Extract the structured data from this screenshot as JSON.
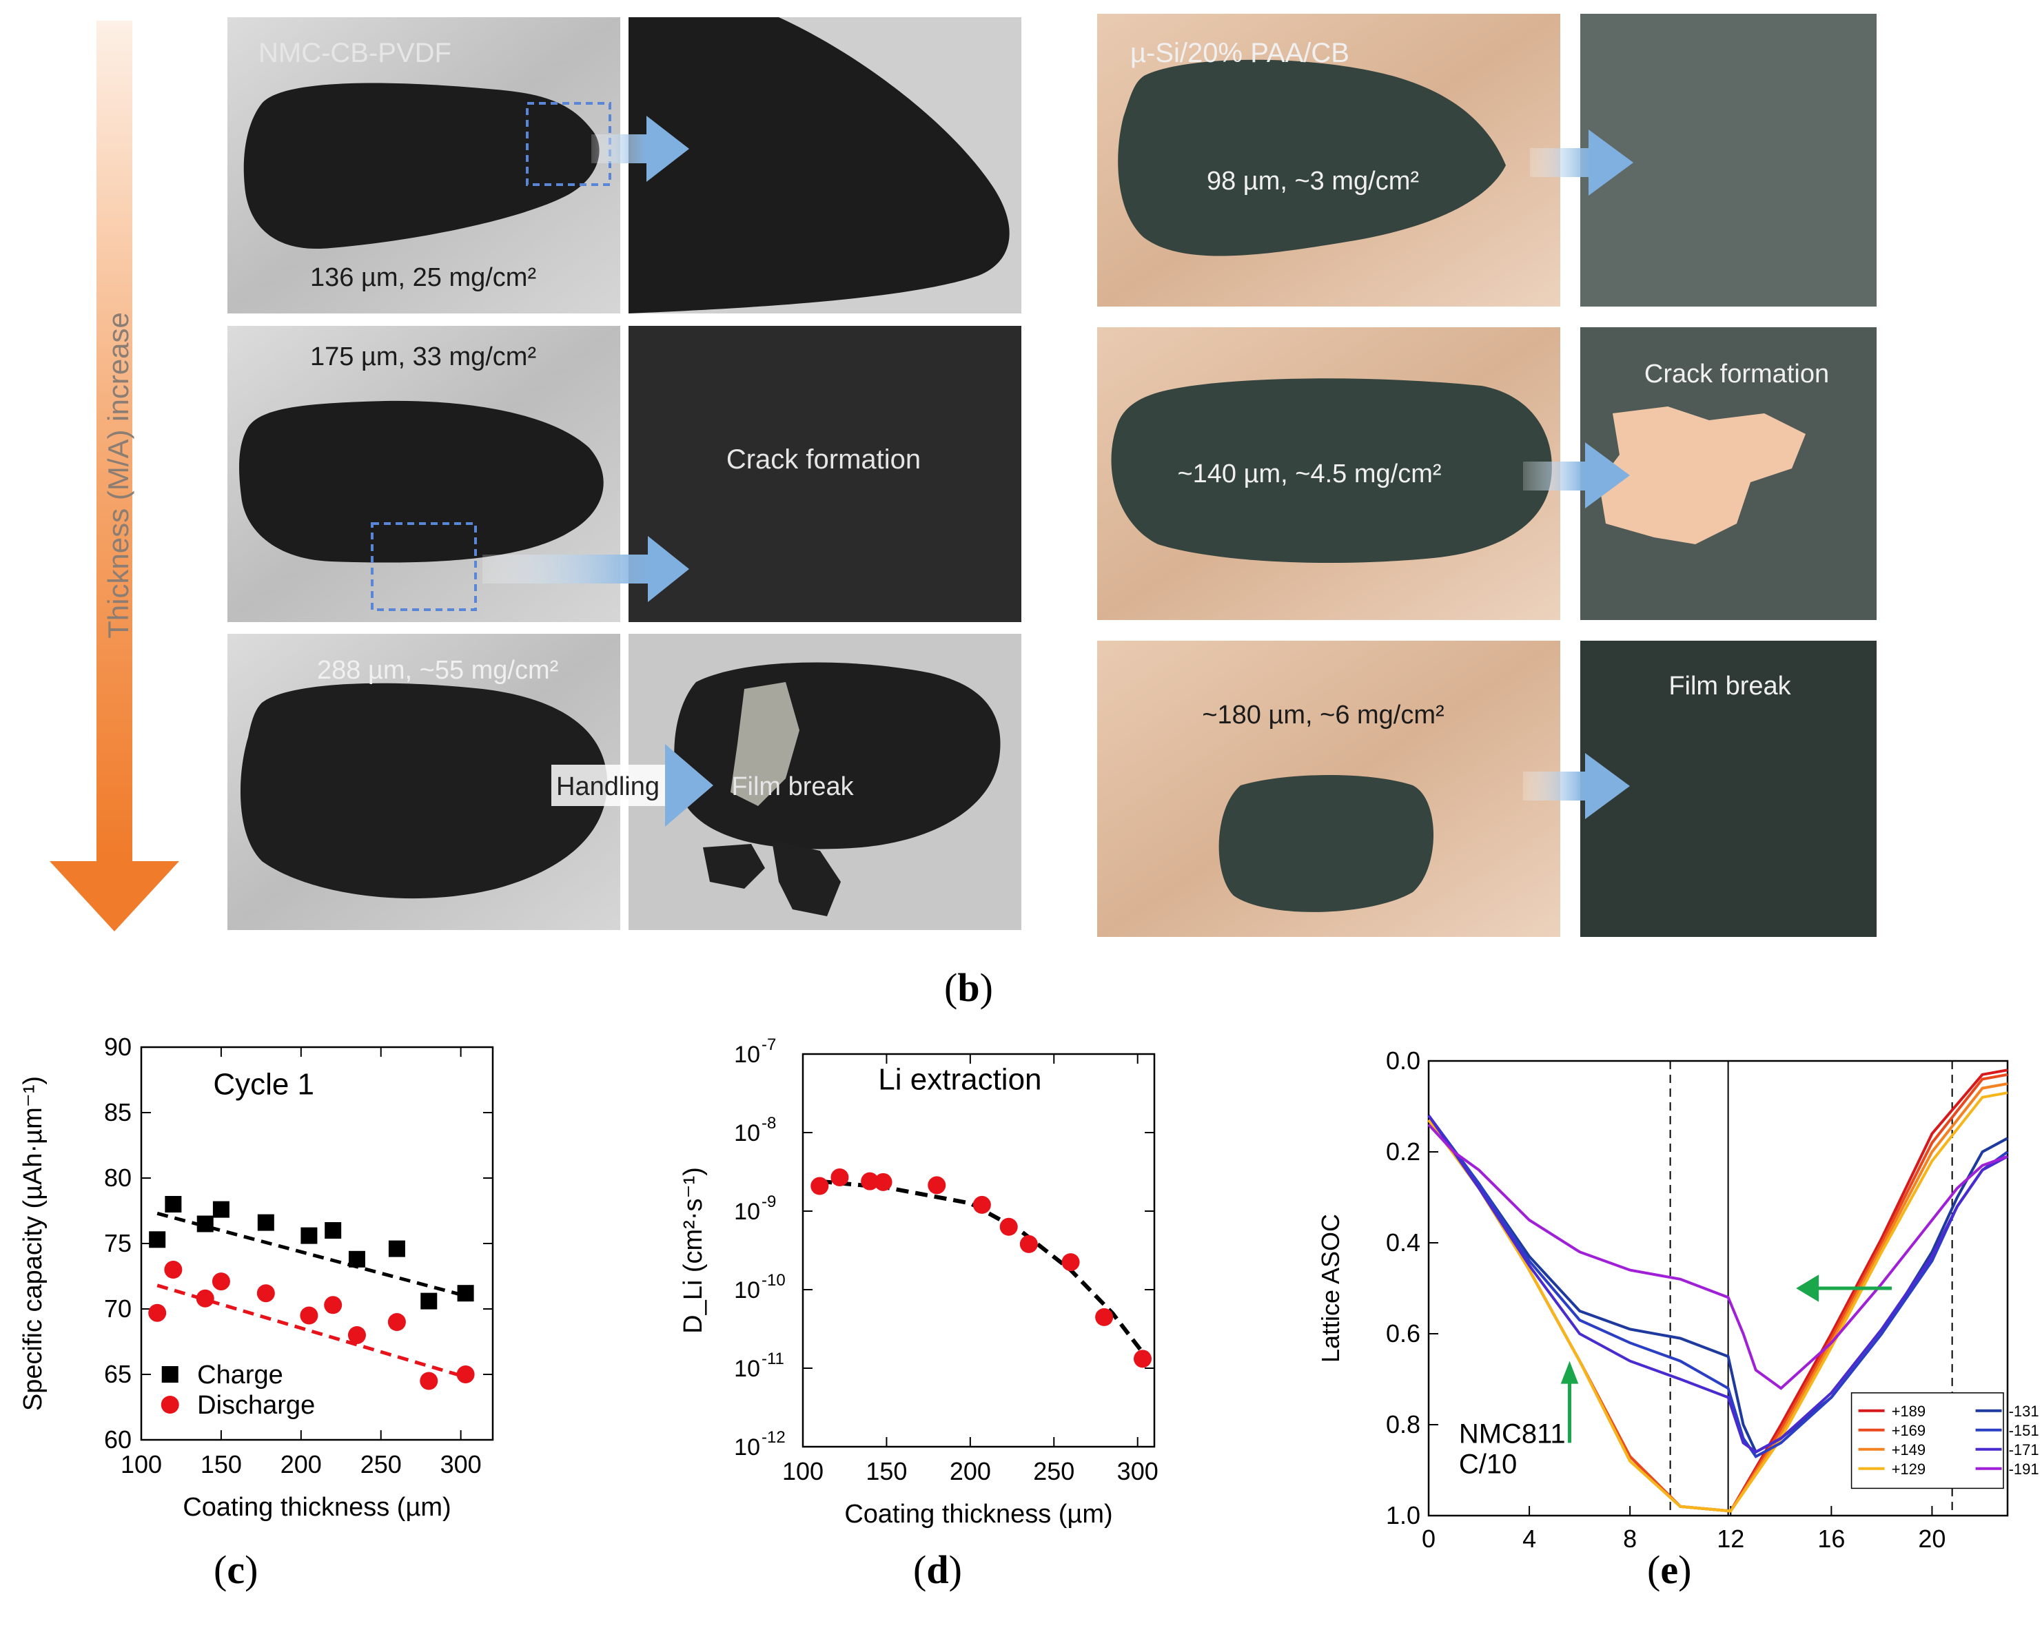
{
  "panel_b": {
    "axis_label": "Thickness (M/A) increase",
    "left_title": "NMC-CB-PVDF",
    "right_title": "µ-Si/20% PAA/CB",
    "left_rows": [
      {
        "label": "136 µm, 25 mg/cm²",
        "zoom_text": ""
      },
      {
        "label": "175 µm, 33 mg/cm²",
        "zoom_text": "Crack formation"
      },
      {
        "label": "288 µm, ~55 mg/cm²",
        "zoom_text": "Film break",
        "handling": "Handling"
      }
    ],
    "right_rows": [
      {
        "label": "98 µm, ~3 mg/cm²",
        "zoom_text": ""
      },
      {
        "label": "~140 µm, ~4.5 mg/cm²",
        "zoom_text": "Crack formation"
      },
      {
        "label": "~180 µm, ~6 mg/cm²",
        "zoom_text": "Film break"
      }
    ],
    "caption": "b"
  },
  "colors": {
    "nmc_film": "#1c1c1c",
    "si_film": "#35443f",
    "al_foil": "#cfcfcf",
    "cu_foil": "#e2bfa3",
    "arrow": "#f28a3a",
    "zoom_arrow": "#8fb8e0"
  },
  "chart_data": [
    {
      "panel": "c",
      "type": "scatter",
      "title": "Cycle 1",
      "xlabel": "Coating thickness (µm)",
      "ylabel": "Specific capacity (µAh·µm⁻¹)",
      "xlim": [
        100,
        320
      ],
      "ylim": [
        60,
        90
      ],
      "xticks": [
        100,
        150,
        200,
        250,
        300
      ],
      "yticks": [
        60,
        65,
        70,
        75,
        80,
        85,
        90
      ],
      "series": [
        {
          "name": "Charge",
          "marker": "square",
          "color": "#000000",
          "x": [
            110,
            120,
            140,
            150,
            178,
            205,
            220,
            235,
            260,
            280,
            303
          ],
          "y": [
            75.3,
            78.0,
            76.5,
            77.6,
            76.6,
            75.6,
            76.0,
            73.8,
            74.6,
            70.6,
            71.2
          ],
          "trend": {
            "x": [
              110,
              303
            ],
            "y": [
              77.3,
              71.0
            ]
          }
        },
        {
          "name": "Discharge",
          "marker": "circle",
          "color": "#e8121a",
          "x": [
            110,
            120,
            140,
            150,
            178,
            205,
            220,
            235,
            260,
            280,
            303
          ],
          "y": [
            69.7,
            73.0,
            70.8,
            72.1,
            71.2,
            69.5,
            70.3,
            68.0,
            69.0,
            64.5,
            65.0
          ],
          "trend": {
            "x": [
              110,
              303
            ],
            "y": [
              71.8,
              64.8
            ]
          }
        }
      ]
    },
    {
      "panel": "d",
      "type": "scatter",
      "title": "Li extraction",
      "xlabel": "Coating thickness (µm)",
      "ylabel": "D_Li (cm²·s⁻¹)",
      "yscale": "log",
      "xlim": [
        100,
        310
      ],
      "ylim_exp": [
        -12,
        -7
      ],
      "xticks": [
        100,
        150,
        200,
        250,
        300
      ],
      "yticks_exp": [
        -12,
        -11,
        -10,
        -9,
        -8,
        -7
      ],
      "series": [
        {
          "name": "D_Li",
          "marker": "circle",
          "color": "#e8121a",
          "x": [
            110,
            122,
            140,
            148,
            180,
            207,
            223,
            235,
            260,
            280,
            303
          ],
          "y_exp": [
            -8.68,
            -8.57,
            -8.62,
            -8.63,
            -8.67,
            -8.92,
            -9.2,
            -9.42,
            -9.65,
            -10.35,
            -10.88
          ]
        },
        {
          "name": "fit",
          "style": "dashed",
          "color": "#000000",
          "x": [
            110,
            150,
            200,
            230,
            260,
            285,
            303
          ],
          "y_exp": [
            -8.62,
            -8.7,
            -8.9,
            -9.25,
            -9.75,
            -10.3,
            -10.8
          ]
        }
      ]
    },
    {
      "panel": "e",
      "type": "line",
      "annotation": "NMC811\nC/10",
      "ylabel": "Lattice ASOC",
      "xlim": [
        0,
        23
      ],
      "ylim": [
        1.0,
        0.0
      ],
      "xticks": [
        0,
        4,
        8,
        12,
        16,
        20
      ],
      "yticks": [
        0.0,
        0.2,
        0.4,
        0.6,
        0.8,
        1.0
      ],
      "vlines": [
        {
          "x": 9.6,
          "style": "dashed"
        },
        {
          "x": 11.9,
          "style": "solid"
        },
        {
          "x": 20.8,
          "style": "dashed"
        }
      ],
      "legend": [
        "+189",
        "+169",
        "+149",
        "+129",
        "-131",
        "-151",
        "-171",
        "-191"
      ],
      "series": [
        {
          "name": "+189",
          "color": "#d7191c",
          "x": [
            0,
            2,
            4,
            6,
            8,
            10,
            12,
            14,
            16,
            18,
            20,
            22,
            23
          ],
          "y": [
            0.13,
            0.27,
            0.46,
            0.66,
            0.87,
            0.98,
            0.99,
            0.8,
            0.6,
            0.39,
            0.16,
            0.03,
            0.02
          ]
        },
        {
          "name": "+169",
          "color": "#e8491d",
          "x": [
            0,
            2,
            4,
            6,
            8,
            10,
            12,
            14,
            16,
            18,
            20,
            22,
            23
          ],
          "y": [
            0.13,
            0.27,
            0.46,
            0.66,
            0.87,
            0.98,
            0.99,
            0.81,
            0.61,
            0.4,
            0.18,
            0.04,
            0.03
          ]
        },
        {
          "name": "+149",
          "color": "#f58220",
          "x": [
            0,
            2,
            4,
            6,
            8,
            10,
            12,
            14,
            16,
            18,
            20,
            22,
            23
          ],
          "y": [
            0.13,
            0.28,
            0.46,
            0.66,
            0.88,
            0.98,
            0.99,
            0.82,
            0.62,
            0.41,
            0.2,
            0.06,
            0.05
          ]
        },
        {
          "name": "+129",
          "color": "#f7b51c",
          "x": [
            0,
            2,
            4,
            6,
            8,
            10,
            12,
            14,
            16,
            18,
            20,
            22,
            23
          ],
          "y": [
            0.13,
            0.28,
            0.46,
            0.66,
            0.88,
            0.98,
            0.99,
            0.83,
            0.63,
            0.42,
            0.22,
            0.08,
            0.07
          ]
        },
        {
          "name": "-131",
          "color": "#1f3a9e",
          "x": [
            0,
            2,
            4,
            6,
            8,
            10,
            11.9,
            12.5,
            13,
            14,
            16,
            18,
            20,
            21,
            22,
            23
          ],
          "y": [
            0.12,
            0.27,
            0.43,
            0.55,
            0.59,
            0.61,
            0.65,
            0.8,
            0.86,
            0.83,
            0.74,
            0.6,
            0.42,
            0.3,
            0.2,
            0.17
          ]
        },
        {
          "name": "-151",
          "color": "#2a3fc4",
          "x": [
            0,
            2,
            4,
            6,
            8,
            10,
            11.9,
            12.5,
            13,
            14,
            16,
            18,
            20,
            21,
            22,
            23
          ],
          "y": [
            0.12,
            0.27,
            0.44,
            0.57,
            0.62,
            0.66,
            0.72,
            0.83,
            0.87,
            0.84,
            0.74,
            0.6,
            0.44,
            0.32,
            0.24,
            0.2
          ]
        },
        {
          "name": "-171",
          "color": "#4a2bd0",
          "x": [
            0,
            2,
            4,
            6,
            8,
            10,
            11.9,
            12.5,
            13,
            14,
            16,
            18,
            20,
            21,
            22,
            23
          ],
          "y": [
            0.12,
            0.28,
            0.45,
            0.6,
            0.66,
            0.7,
            0.74,
            0.84,
            0.86,
            0.83,
            0.73,
            0.59,
            0.43,
            0.32,
            0.24,
            0.21
          ]
        },
        {
          "name": "-191",
          "color": "#a020d8",
          "x": [
            0,
            1,
            2,
            4,
            6,
            8,
            10,
            11.9,
            12.5,
            13,
            14,
            16,
            18,
            20,
            21,
            22,
            23
          ],
          "y": [
            0.14,
            0.2,
            0.24,
            0.35,
            0.42,
            0.46,
            0.48,
            0.52,
            0.6,
            0.68,
            0.72,
            0.62,
            0.49,
            0.35,
            0.28,
            0.23,
            0.21
          ]
        }
      ]
    }
  ],
  "captions": {
    "c": "c",
    "d": "d",
    "e": "e"
  }
}
